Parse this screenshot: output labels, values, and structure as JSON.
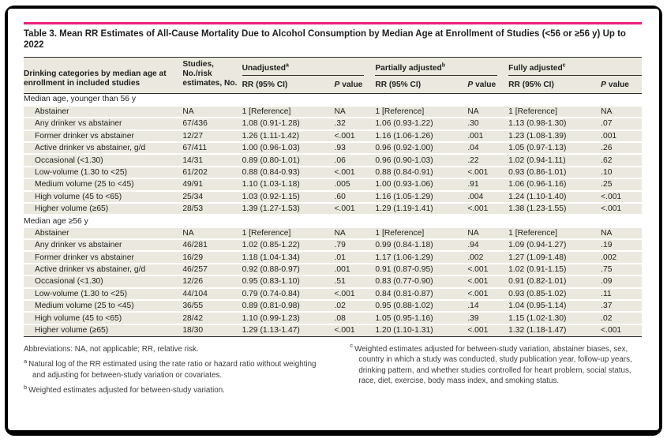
{
  "title": "Table 3. Mean RR Estimates of All-Cause Mortality Due to Alcohol Consumption by Median Age at Enrollment of Studies (<56 or ≥56 y) Up to 2022",
  "columns": {
    "category": "Drinking categories by median age at enrollment in included studies",
    "studies": "Studies, No./risk estimates, No.",
    "rr": "RR (95% CI)",
    "p_symbol": "P",
    "p_rest": "value",
    "groups": [
      {
        "label": "Unadjusted",
        "sup": "a"
      },
      {
        "label": "Partially adjusted",
        "sup": "b"
      },
      {
        "label": "Fully adjusted",
        "sup": "c"
      }
    ]
  },
  "sections": [
    {
      "header": "Median age, younger than 56 y",
      "rows": [
        {
          "label": "Abstainer",
          "studies": "NA",
          "u_rr": "1 [Reference]",
          "u_p": "NA",
          "pa_rr": "1 [Reference]",
          "pa_p": "NA",
          "f_rr": "1 [Reference]",
          "f_p": "NA"
        },
        {
          "label": "Any drinker vs abstainer",
          "studies": "67/436",
          "u_rr": "1.08 (0.91-1.28)",
          "u_p": ".32",
          "pa_rr": "1.06 (0.93-1.22)",
          "pa_p": ".30",
          "f_rr": "1.13 (0.98-1.30)",
          "f_p": ".07"
        },
        {
          "label": "Former drinker vs abstainer",
          "studies": "12/27",
          "u_rr": "1.26 (1.11-1.42)",
          "u_p": "<.001",
          "pa_rr": "1.16 (1.06-1.26)",
          "pa_p": ".001",
          "f_rr": "1.23 (1.08-1.39)",
          "f_p": ".001"
        },
        {
          "label": "Active drinker vs abstainer, g/d",
          "studies": "67/411",
          "u_rr": "1.00 (0.96-1.03)",
          "u_p": ".93",
          "pa_rr": "0.96 (0.92-1.00)",
          "pa_p": ".04",
          "f_rr": "1.05 (0.97-1.13)",
          "f_p": ".26"
        },
        {
          "label": "Occasional (<1.30)",
          "studies": "14/31",
          "u_rr": "0.89 (0.80-1.01)",
          "u_p": ".06",
          "pa_rr": "0.96 (0.90-1.03)",
          "pa_p": ".22",
          "f_rr": "1.02 (0.94-1.11)",
          "f_p": ".62"
        },
        {
          "label": "Low-volume (1.30 to <25)",
          "studies": "61/202",
          "u_rr": "0.88 (0.84-0.93)",
          "u_p": "<.001",
          "pa_rr": "0.88 (0.84-0.91)",
          "pa_p": "<.001",
          "f_rr": "0.93 (0.86-1.01)",
          "f_p": ".10"
        },
        {
          "label": "Medium volume (25 to <45)",
          "studies": "49/91",
          "u_rr": "1.10 (1.03-1.18)",
          "u_p": ".005",
          "pa_rr": "1.00 (0.93-1.06)",
          "pa_p": ".91",
          "f_rr": "1.06 (0.96-1.16)",
          "f_p": ".25"
        },
        {
          "label": "High volume (45 to <65)",
          "studies": "25/34",
          "u_rr": "1.03 (0.92-1.15)",
          "u_p": ".60",
          "pa_rr": "1.16 (1.05-1.29)",
          "pa_p": ".004",
          "f_rr": "1.24 (1.10-1.40)",
          "f_p": "<.001"
        },
        {
          "label": "Higher volume (≥65)",
          "studies": "28/53",
          "u_rr": "1.39 (1.27-1.53)",
          "u_p": "<.001",
          "pa_rr": "1.29 (1.19-1.41)",
          "pa_p": "<.001",
          "f_rr": "1.38 (1.23-1.55)",
          "f_p": "<.001"
        }
      ]
    },
    {
      "header": "Median age ≥56 y",
      "rows": [
        {
          "label": "Abstainer",
          "studies": "NA",
          "u_rr": "1 [Reference]",
          "u_p": "NA",
          "pa_rr": "1 [Reference]",
          "pa_p": "NA",
          "f_rr": "1 [Reference]",
          "f_p": "NA"
        },
        {
          "label": "Any drinker vs abstainer",
          "studies": "46/281",
          "u_rr": "1.02 (0.85-1.22)",
          "u_p": ".79",
          "pa_rr": "0.99 (0.84-1.18)",
          "pa_p": ".94",
          "f_rr": "1.09 (0.94-1.27)",
          "f_p": ".19"
        },
        {
          "label": "Former drinker vs abstainer",
          "studies": "16/29",
          "u_rr": "1.18 (1.04-1.34)",
          "u_p": ".01",
          "pa_rr": "1.17 (1.06-1.29)",
          "pa_p": ".002",
          "f_rr": "1.27 (1.09-1.48)",
          "f_p": ".002"
        },
        {
          "label": "Active drinker vs abstainer, g/d",
          "studies": "46/257",
          "u_rr": "0.92 (0.88-0.97)",
          "u_p": ".001",
          "pa_rr": "0.91 (0.87-0.95)",
          "pa_p": "<.001",
          "f_rr": "1.02 (0.91-1.15)",
          "f_p": ".75"
        },
        {
          "label": "Occasional (<1.30)",
          "studies": "12/26",
          "u_rr": "0.95 (0.83-1.10)",
          "u_p": ".51",
          "pa_rr": "0.83 (0.77-0.90)",
          "pa_p": "<.001",
          "f_rr": "0.91 (0.82-1.01)",
          "f_p": ".09"
        },
        {
          "label": "Low-volume (1.30 to <25)",
          "studies": "44/104",
          "u_rr": "0.79 (0.74-0.84)",
          "u_p": "<.001",
          "pa_rr": "0.84 (0.81-0.87)",
          "pa_p": "<.001",
          "f_rr": "0.93 (0.85-1.02)",
          "f_p": ".11"
        },
        {
          "label": "Medium volume (25 to <45)",
          "studies": "36/55",
          "u_rr": "0.89 (0.81-0.98)",
          "u_p": ".02",
          "pa_rr": "0.95 (0.88-1.02)",
          "pa_p": ".14",
          "f_rr": "1.04 (0.95-1.14)",
          "f_p": ".37"
        },
        {
          "label": "High volume (45 to <65)",
          "studies": "28/42",
          "u_rr": "1.10 (0.99-1.23)",
          "u_p": ".08",
          "pa_rr": "1.05 (0.95-1.16)",
          "pa_p": ".39",
          "f_rr": "1.15 (1.02-1.30)",
          "f_p": ".02"
        },
        {
          "label": "Higher volume (≥65)",
          "studies": "18/30",
          "u_rr": "1.29 (1.13-1.47)",
          "u_p": "<.001",
          "pa_rr": "1.20 (1.10-1.31)",
          "pa_p": "<.001",
          "f_rr": "1.32 (1.18-1.47)",
          "f_p": "<.001"
        }
      ]
    }
  ],
  "footnotes": {
    "abbreviations": "Abbreviations: NA, not applicable; RR, relative risk.",
    "a_mark": "a",
    "a_text": "Natural log of the RR estimated using the rate ratio or hazard ratio without weighting and adjusting for between-study variation or covariates.",
    "b_mark": "b",
    "b_text": "Weighted estimates adjusted for between-study variation.",
    "c_mark": "c",
    "c_text": "Weighted estimates adjusted for between-study variation, abstainer biases, sex, country in which a study was conducted, study publication year, follow-up years, drinking pattern, and whether studies controlled for heart problem, social status, race, diet, exercise, body mass index, and smoking status."
  },
  "colors": {
    "accent_pink": "#ed1f7e",
    "row_beige": "#ebe9df",
    "rule_dark": "#2b2b2b",
    "text": "#1e1e1e"
  }
}
